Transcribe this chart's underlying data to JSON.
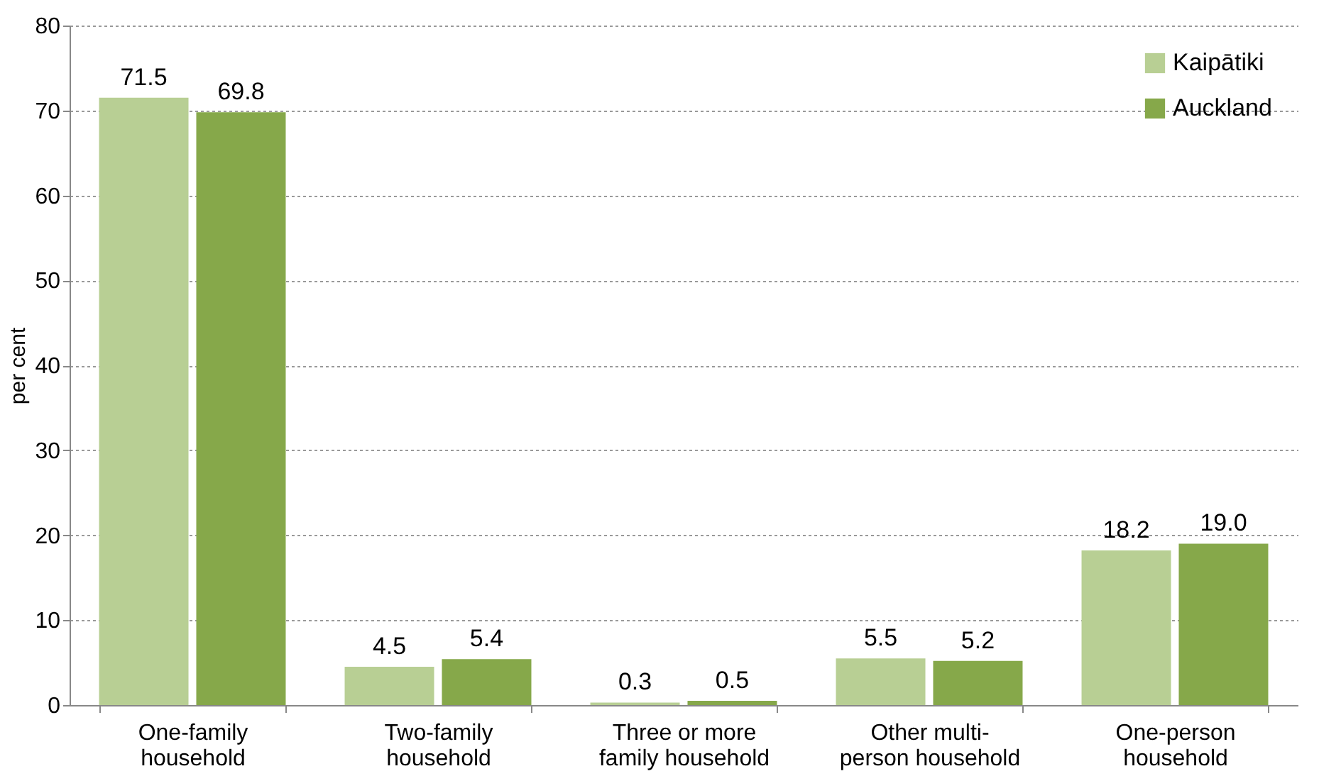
{
  "chart_data": {
    "type": "bar",
    "ylabel": "per cent",
    "categories": [
      "One-family\nhousehold",
      "Two-family\nhousehold",
      "Three or more\nfamily household",
      "Other multi-\nperson household",
      "One-person\nhousehold"
    ],
    "series": [
      {
        "name": "Kaipātiki",
        "color": "#b8cf94",
        "values": [
          71.5,
          4.5,
          0.3,
          5.5,
          18.2
        ],
        "value_labels": [
          "71.5",
          "4.5",
          "0.3",
          "5.5",
          "18.2"
        ]
      },
      {
        "name": "Auckland",
        "color": "#86a84a",
        "values": [
          69.8,
          5.4,
          0.5,
          5.2,
          19.0
        ],
        "value_labels": [
          "69.8",
          "5.4",
          "0.5",
          "5.2",
          "19.0"
        ]
      }
    ],
    "ylim": [
      0,
      80
    ],
    "yticks": [
      0,
      10,
      20,
      30,
      40,
      50,
      60,
      70,
      80
    ],
    "grid": "y",
    "legend": "top right"
  }
}
